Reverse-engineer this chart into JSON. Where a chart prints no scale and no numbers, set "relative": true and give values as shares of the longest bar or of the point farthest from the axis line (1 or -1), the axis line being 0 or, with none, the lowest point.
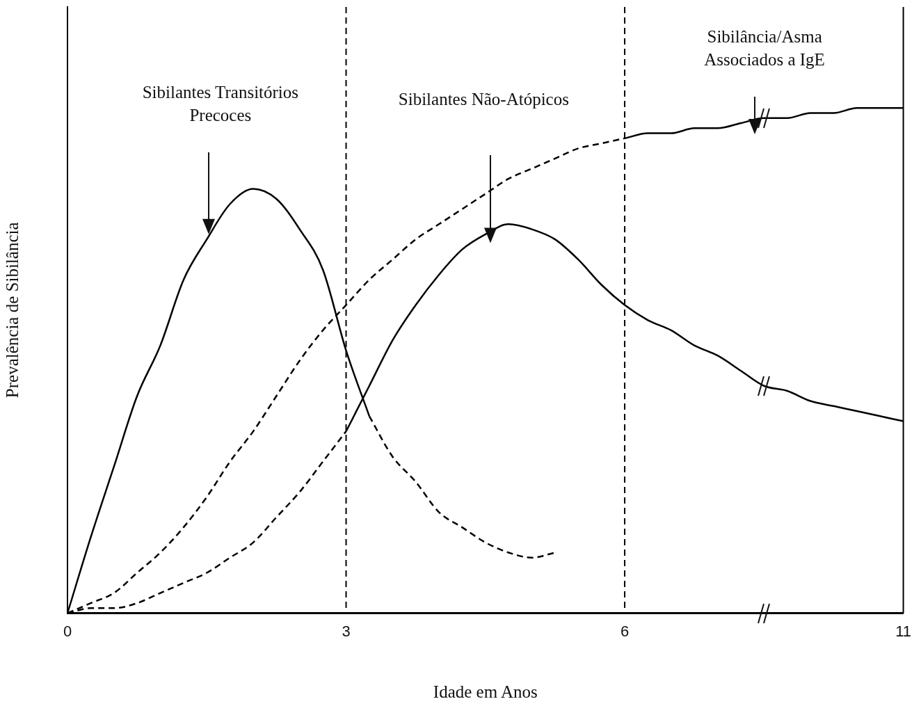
{
  "chart_data": {
    "type": "line",
    "relative": true,
    "xlabel": "Idade em Anos",
    "ylabel": "Prevalência de Sibilância",
    "categories": [
      "0",
      null,
      null,
      null,
      null,
      null,
      null,
      null,
      null,
      null,
      null,
      null,
      "3",
      null,
      null,
      null,
      null,
      null,
      null,
      null,
      null,
      null,
      null,
      null,
      "6",
      null,
      null,
      null,
      null,
      null,
      null,
      null,
      null,
      null,
      null,
      null,
      "11"
    ],
    "series": [
      {
        "color": "#000000",
        "line_style": "solid",
        "values": [
          0,
          0.15,
          0.29,
          0.43,
          0.53,
          0.66,
          0.74,
          0.81,
          0.84,
          0.82,
          0.76,
          0.68,
          0.52,
          0.39,
          null,
          null,
          null,
          null,
          null,
          null,
          null,
          null,
          null,
          null,
          null,
          null,
          null,
          null,
          null,
          null,
          null,
          null,
          null,
          null,
          null,
          null,
          null
        ]
      },
      {
        "color": "#000000",
        "line_style": "dashed",
        "values": [
          null,
          null,
          null,
          null,
          null,
          null,
          null,
          null,
          null,
          null,
          null,
          null,
          null,
          0.39,
          0.31,
          0.26,
          0.2,
          0.17,
          0.14,
          0.12,
          0.11,
          0.12,
          null,
          null,
          null,
          null,
          null,
          null,
          null,
          null,
          null,
          null,
          null,
          null,
          null,
          null,
          null
        ]
      },
      {
        "color": "#000000",
        "line_style": "dashed",
        "values": [
          0,
          0.01,
          0.01,
          0.02,
          0.04,
          0.06,
          0.08,
          0.11,
          0.14,
          0.19,
          0.24,
          0.3,
          0.36,
          null,
          null,
          null,
          null,
          null,
          null,
          null,
          null,
          null,
          null,
          null,
          null,
          null,
          null,
          null,
          null,
          null,
          null,
          null,
          null,
          null,
          null,
          null,
          null
        ]
      },
      {
        "color": "#000000",
        "line_style": "solid",
        "values": [
          null,
          null,
          null,
          null,
          null,
          null,
          null,
          null,
          null,
          null,
          null,
          null,
          0.36,
          0.45,
          0.54,
          0.61,
          0.67,
          0.72,
          0.75,
          0.77,
          0.76,
          0.74,
          0.7,
          0.65,
          0.61,
          0.58,
          0.56,
          0.53,
          0.51,
          0.48,
          0.45,
          0.44,
          0.42,
          0.41,
          0.4,
          0.39,
          0.38
        ]
      },
      {
        "color": "#000000",
        "line_style": "dashed",
        "values": [
          0,
          0.02,
          0.04,
          0.08,
          0.12,
          0.17,
          0.23,
          0.3,
          0.36,
          0.43,
          0.5,
          0.56,
          0.61,
          0.66,
          0.7,
          0.74,
          0.77,
          0.8,
          0.83,
          0.86,
          0.88,
          0.9,
          0.92,
          0.93,
          0.94,
          null,
          null,
          null,
          null,
          null,
          null,
          null,
          null,
          null,
          null,
          null,
          null
        ]
      },
      {
        "color": "#000000",
        "line_style": "solid",
        "values": [
          null,
          null,
          null,
          null,
          null,
          null,
          null,
          null,
          null,
          null,
          null,
          null,
          null,
          null,
          null,
          null,
          null,
          null,
          null,
          null,
          null,
          null,
          null,
          null,
          0.94,
          0.95,
          0.95,
          0.96,
          0.96,
          0.97,
          0.98,
          0.98,
          0.99,
          0.99,
          1.0,
          1.0,
          1.0
        ]
      }
    ],
    "ref_lines": [
      {
        "axis": "x",
        "value": "3",
        "line_style": "dashed",
        "color": "#000000"
      },
      {
        "axis": "x",
        "value": "6",
        "line_style": "dashed",
        "color": "#000000"
      }
    ],
    "annotations": [
      "Sibilantes Transitórios\nPrecoces",
      "Sibilantes Não-Atópicos",
      "Sibilância/Asma\nAssociados a IgE"
    ],
    "grid": false,
    "legend": false,
    "marker": "none"
  }
}
